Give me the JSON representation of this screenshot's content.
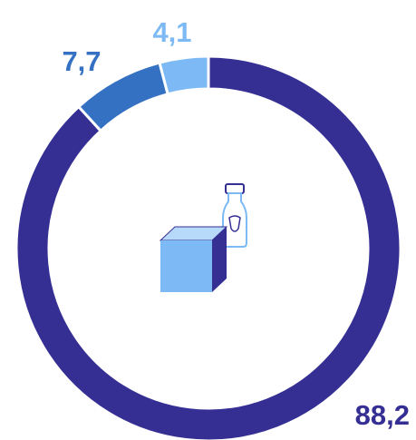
{
  "chart_data": {
    "type": "donut",
    "values": [
      88.2,
      7.7,
      4.1
    ],
    "value_labels": [
      "88,2",
      "7,7",
      "4,1"
    ],
    "colors": [
      "#352f94",
      "#3571c2",
      "#7dbaf5"
    ]
  }
}
